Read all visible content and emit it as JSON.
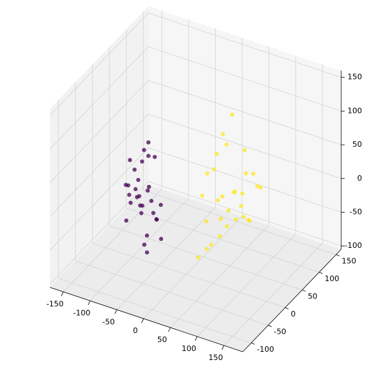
{
  "chart_data": {
    "type": "scatter3d",
    "xlim": [
      -175,
      185
    ],
    "ylim": [
      -125,
      165
    ],
    "zlim": [
      -105,
      160
    ],
    "xticks": [
      -150,
      -100,
      -50,
      0,
      50,
      100,
      150
    ],
    "yticks": [
      -100,
      -50,
      0,
      50,
      100,
      150
    ],
    "zticks": [
      -100,
      -50,
      0,
      50,
      100,
      150
    ],
    "grid": true,
    "series": [
      {
        "color": "#440154",
        "x": [
          -60,
          -45,
          -30,
          -70,
          -20,
          -50,
          -35,
          -80,
          -55,
          -25,
          -40,
          -65,
          -15,
          -45,
          -30,
          -75,
          -50,
          -35,
          -60,
          -20,
          -40,
          -55,
          -70,
          -25,
          -45,
          -35,
          -50,
          -65,
          -30,
          -40
        ],
        "y": [
          -50,
          -70,
          -40,
          -60,
          -55,
          -45,
          -80,
          -50,
          -65,
          -35,
          -60,
          -75,
          -50,
          -40,
          -55,
          -45,
          -70,
          -60,
          -35,
          -65,
          -50,
          -45,
          -55,
          -70,
          -40,
          -60,
          -50,
          -65,
          -45,
          -75
        ],
        "z": [
          20,
          60,
          -10,
          40,
          0,
          90,
          30,
          -20,
          70,
          10,
          -40,
          50,
          -30,
          80,
          25,
          5,
          45,
          -50,
          65,
          15,
          35,
          -5,
          75,
          55,
          100,
          -25,
          10,
          30,
          85,
          40
        ]
      },
      {
        "color": "#fde725",
        "x": [
          40,
          70,
          20,
          90,
          55,
          30,
          100,
          60,
          45,
          80,
          25,
          65,
          110,
          50,
          35,
          75,
          95,
          40,
          60,
          85,
          30,
          70,
          50,
          120,
          45,
          55,
          90,
          35,
          65,
          80
        ],
        "y": [
          30,
          10,
          50,
          20,
          60,
          0,
          40,
          30,
          -10,
          50,
          20,
          70,
          10,
          40,
          -20,
          25,
          60,
          45,
          5,
          35,
          15,
          55,
          -5,
          30,
          65,
          20,
          45,
          35,
          0,
          15
        ],
        "z": [
          0,
          -20,
          30,
          10,
          -40,
          20,
          50,
          -10,
          -50,
          40,
          -30,
          60,
          0,
          80,
          -60,
          25,
          20,
          90,
          -35,
          -15,
          45,
          5,
          -45,
          40,
          110,
          15,
          -25,
          65,
          -5,
          30
        ]
      }
    ]
  }
}
